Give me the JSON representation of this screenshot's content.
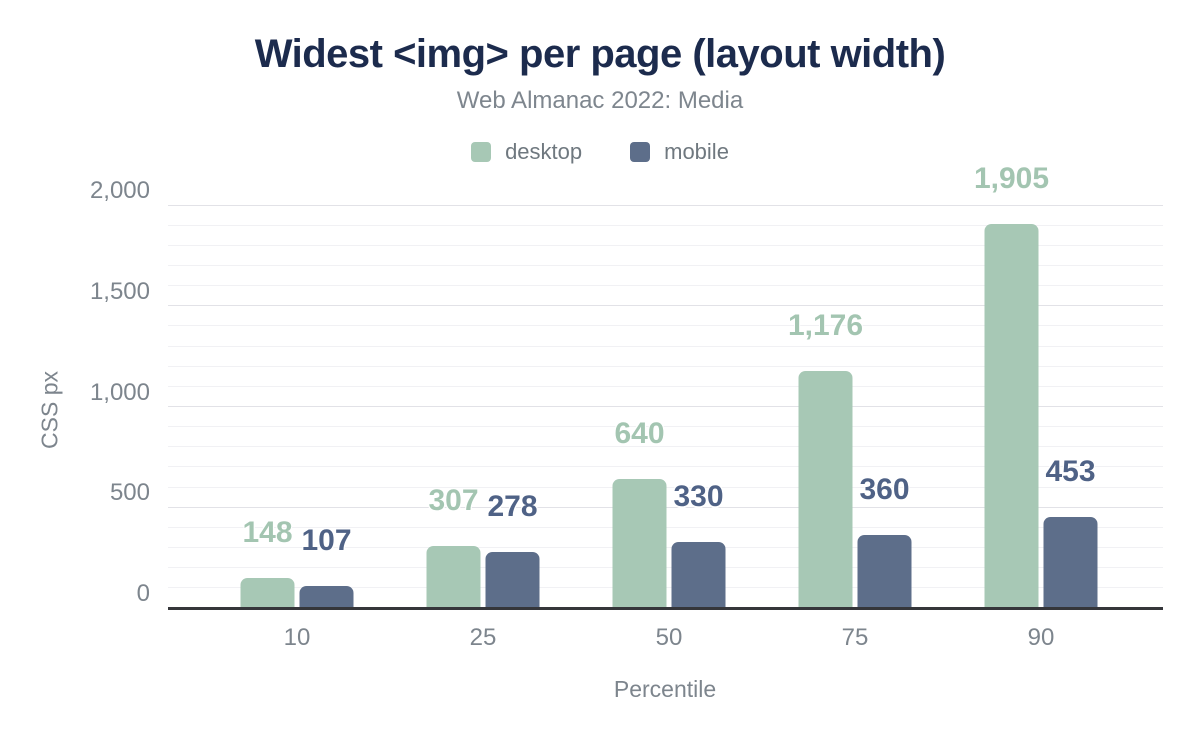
{
  "header": {
    "title": "Widest <img> per page (layout width)",
    "subtitle": "Web Almanac 2022: Media"
  },
  "chart_data": {
    "type": "bar",
    "title": "Widest <img> per page (layout width)",
    "subtitle": "Web Almanac 2022: Media",
    "categories": [
      "10",
      "25",
      "50",
      "75",
      "90"
    ],
    "series": [
      {
        "name": "desktop",
        "color": "#a7c8b5",
        "label_color": "#a3c5b1",
        "values": [
          148,
          307,
          640,
          1176,
          1905
        ],
        "value_labels": [
          "148",
          "307",
          "640",
          "1,176",
          "1,905"
        ]
      },
      {
        "name": "mobile",
        "color": "#5d6e8a",
        "label_color": "#4f6286",
        "values": [
          107,
          278,
          330,
          360,
          453
        ],
        "value_labels": [
          "107",
          "278",
          "330",
          "360",
          "453"
        ]
      }
    ],
    "xlabel": "Percentile",
    "ylabel": "CSS px",
    "ylim": [
      0,
      2000
    ],
    "yticks": [
      0,
      500,
      1000,
      1500,
      2000
    ],
    "ytick_labels": [
      "0",
      "500",
      "1,000",
      "1,500",
      "2,000"
    ],
    "minor_grid_step": 100,
    "major_grid_step": 500,
    "grid": true,
    "legend_position": "top"
  },
  "colors": {
    "title": "#1c2b4d",
    "axis_text": "#7d858d",
    "baseline": "#35363a",
    "grid_major": "#e2e2e7",
    "grid_minor": "#f1f1f4"
  }
}
